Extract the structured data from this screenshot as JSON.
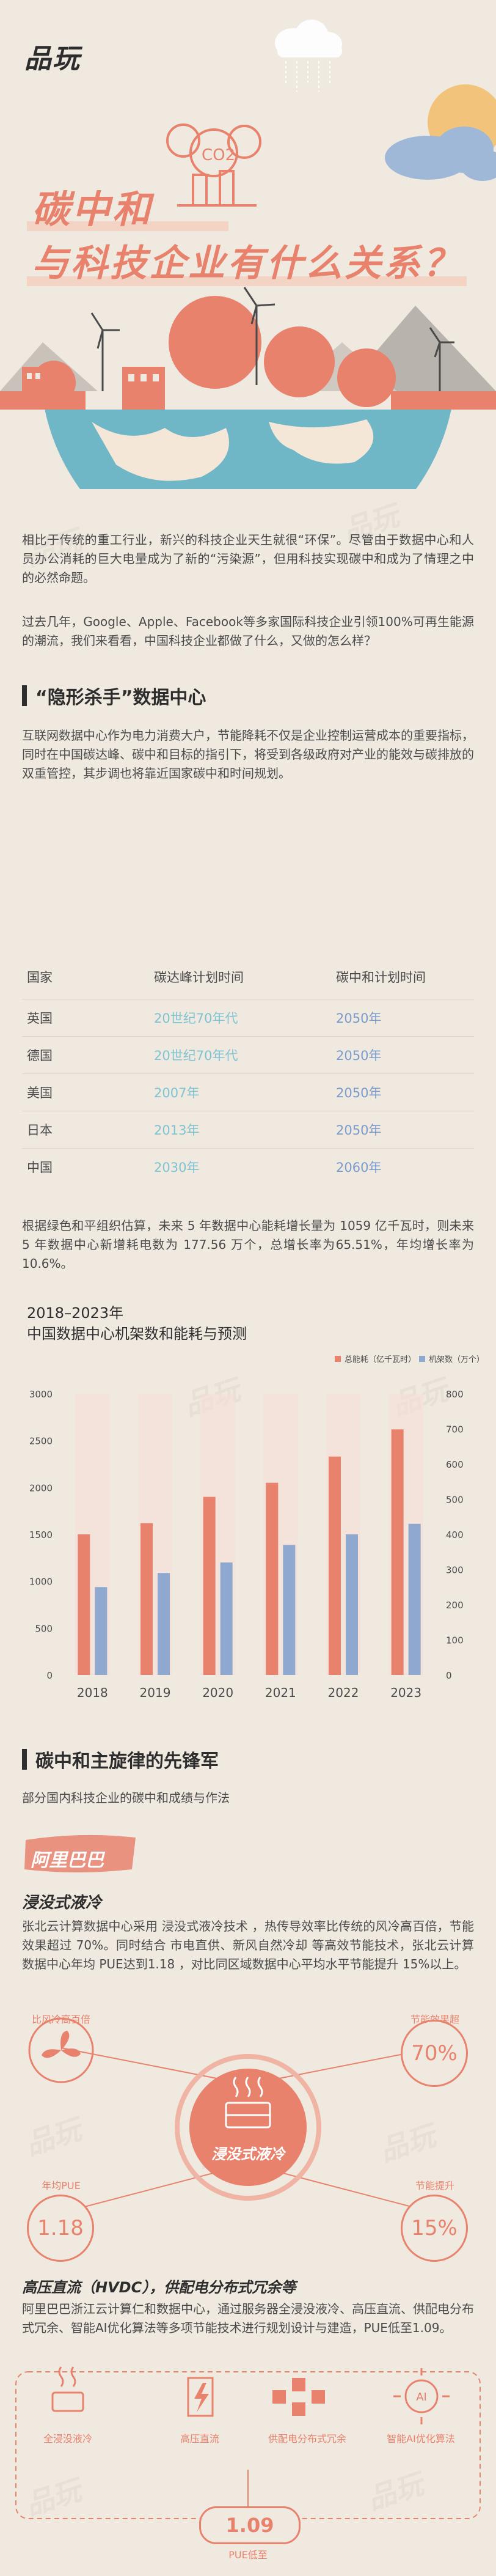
{
  "brand": {
    "logo": "品玩"
  },
  "hero": {
    "title_line1": "碳中和",
    "title_line2": "与科技企业有什么关系？",
    "co2_label": "CO2"
  },
  "intro": {
    "p1": "相比于传统的重工行业，新兴的科技企业天生就很“环保”。尽管由于数据中心和人员办公消耗的巨大电量成为了新的“污染源”，但用科技实现碳中和成为了情理之中的必然命题。",
    "p2": "过去几年，Google、Apple、Facebook等多家国际科技企业引领100%可再生能源的潮流，我们来看看，中国科技企业都做了什么，又做的怎么样？"
  },
  "section1": {
    "heading": "“隐形杀手”数据中心",
    "p1": "互联网数据中心作为电力消费大户，节能降耗不仅是企业控制运营成本的重要指标，同时在中国碳达峰、碳中和目标的指引下，将受到各级政府对产业的能效与碳排放的双重管控，其步调也将靠近国家碳中和时间规划。",
    "table": {
      "headers": [
        "国家",
        "碳达峰计划时间",
        "碳中和计划时间"
      ],
      "rows": [
        [
          "英国",
          "20世纪70年代",
          "2050年"
        ],
        [
          "德国",
          "20世纪70年代",
          "2050年"
        ],
        [
          "美国",
          "2007年",
          "2050年"
        ],
        [
          "日本",
          "2013年",
          "2050年"
        ],
        [
          "中国",
          "2030年",
          "2060年"
        ]
      ]
    },
    "p2": "根据绿色和平组织估算，未来 5 年数据中心能耗增长量为 1059 亿千瓦时，则未来 5 年数据中心新增耗电数为 177.56 万个，总增长率为65.51%，年均增长率为 10.6%。"
  },
  "chart_data": {
    "type": "bar",
    "title_line1": "2018–2023年",
    "title_line2": "中国数据中心机架数和能耗与预测",
    "categories": [
      "2018",
      "2019",
      "2020",
      "2021",
      "2022",
      "2023"
    ],
    "series": [
      {
        "name": "总能耗（亿千瓦时）",
        "axis": "left",
        "color": "#e8826d",
        "values": [
          1500,
          1620,
          1900,
          2050,
          2330,
          2620
        ]
      },
      {
        "name": "机架数（万个）",
        "axis": "right",
        "color": "#8ea8d0",
        "values": [
          250,
          290,
          320,
          370,
          400,
          430
        ]
      }
    ],
    "ylim_left": [
      0,
      3000
    ],
    "yticks_left": [
      0,
      500,
      1000,
      1500,
      2000,
      2500,
      3000
    ],
    "ylim_right": [
      0,
      800
    ],
    "yticks_right": [
      0,
      100,
      200,
      300,
      400,
      500,
      600,
      700,
      800
    ],
    "grid": false,
    "legend_position": "top-right"
  },
  "section2": {
    "heading": "碳中和主旋律的先锋军",
    "intro": "部分国内科技企业的碳中和成绩与作法",
    "company": "阿里巴巴",
    "sub1_title": "浸没式液冷",
    "sub1_body": "张北云计算数据中心采用 浸没式液冷技术 ，热传导效率比传统的风冷高百倍，节能效果超过 70%。同时结合 市电直供、新风自然冷却 等高效节能技术，张北云计算数据中心年均 PUE达到1.18 ，对比同区域数据中心平均水平节能提升 15%以上。",
    "center_label": "浸没式液冷",
    "kpis": [
      {
        "label": "比风冷高百倍",
        "value": ""
      },
      {
        "label": "节能效果超",
        "value": "70%"
      },
      {
        "label": "年均PUE",
        "value": "1.18"
      },
      {
        "label": "节能提升",
        "value": "15%"
      }
    ],
    "sub2_title": "高压直流（HVDC），供配电分布式冗余等",
    "sub2_body": "阿里巴巴浙江云计算仁和数据中心，通过服务器全浸没液冷、高压直流、供配电分布式冗余、智能AI优化算法等多项节能技术进行规划设计与建造，PUE低至1.09。",
    "tech_icons": [
      {
        "label": "全浸没液冷"
      },
      {
        "label": "高压直流"
      },
      {
        "label": "供配电分布式冗余"
      },
      {
        "label": "智能AI优化算法"
      }
    ],
    "pue_value": "1.09",
    "pue_label": "PUE低至"
  }
}
